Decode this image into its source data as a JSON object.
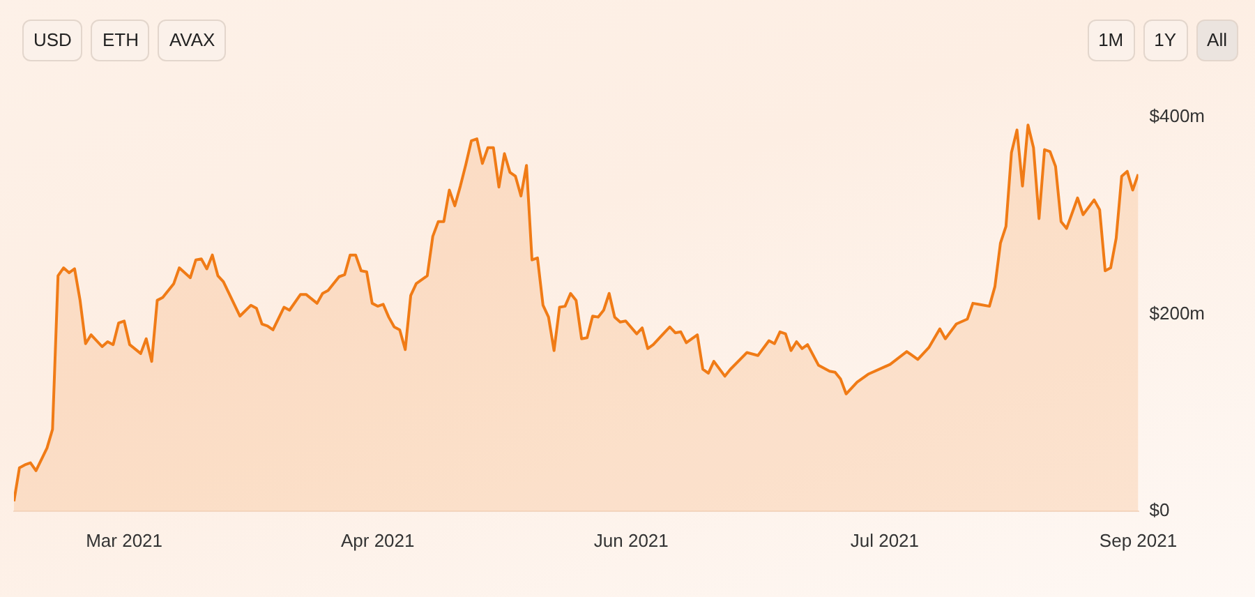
{
  "chart_data": {
    "type": "area",
    "annotations": [
      "USD",
      "ETH",
      "AVAX",
      "1M",
      "1Y",
      "All"
    ],
    "x": [
      "2021-02-13",
      "2021-02-14",
      "2021-02-15",
      "2021-02-16",
      "2021-02-17",
      "2021-02-19",
      "2021-02-20",
      "2021-02-21",
      "2021-02-22",
      "2021-02-23",
      "2021-02-24",
      "2021-02-25",
      "2021-02-26",
      "2021-02-27",
      "2021-03-01",
      "2021-03-02",
      "2021-03-03",
      "2021-03-04",
      "2021-03-05",
      "2021-03-06",
      "2021-03-08",
      "2021-03-09",
      "2021-03-10",
      "2021-03-11",
      "2021-03-12",
      "2021-03-14",
      "2021-03-15",
      "2021-03-17",
      "2021-03-18",
      "2021-03-19",
      "2021-03-20",
      "2021-03-21",
      "2021-03-22",
      "2021-03-23",
      "2021-03-26",
      "2021-03-28",
      "2021-03-29",
      "2021-03-30",
      "2021-03-31",
      "2021-04-01",
      "2021-04-03",
      "2021-04-04",
      "2021-04-06",
      "2021-04-07",
      "2021-04-09",
      "2021-04-10",
      "2021-04-11",
      "2021-04-13",
      "2021-04-14",
      "2021-04-15",
      "2021-04-16",
      "2021-04-17",
      "2021-04-18",
      "2021-04-19",
      "2021-04-20",
      "2021-04-21",
      "2021-04-22",
      "2021-04-23",
      "2021-04-24",
      "2021-04-25",
      "2021-04-26",
      "2021-04-27",
      "2021-04-29",
      "2021-04-30",
      "2021-05-01",
      "2021-05-02",
      "2021-05-03",
      "2021-05-04",
      "2021-05-05",
      "2021-05-06",
      "2021-05-07",
      "2021-05-08",
      "2021-05-09",
      "2021-05-10",
      "2021-05-11",
      "2021-05-12",
      "2021-05-13",
      "2021-05-14",
      "2021-05-15",
      "2021-05-16",
      "2021-05-17",
      "2021-05-18",
      "2021-05-19",
      "2021-05-20",
      "2021-05-21",
      "2021-05-22",
      "2021-05-23",
      "2021-05-24",
      "2021-05-25",
      "2021-05-26",
      "2021-05-27",
      "2021-05-28",
      "2021-05-29",
      "2021-05-30",
      "2021-05-31",
      "2021-06-01",
      "2021-06-02",
      "2021-06-03",
      "2021-06-04",
      "2021-06-06",
      "2021-06-07",
      "2021-06-08",
      "2021-06-09",
      "2021-06-11",
      "2021-06-12",
      "2021-06-13",
      "2021-06-14",
      "2021-06-15",
      "2021-06-17",
      "2021-06-18",
      "2021-06-19",
      "2021-06-20",
      "2021-06-22",
      "2021-06-23",
      "2021-06-26",
      "2021-06-28",
      "2021-06-30",
      "2021-07-01",
      "2021-07-02",
      "2021-07-03",
      "2021-07-04",
      "2021-07-05",
      "2021-07-06",
      "2021-07-07",
      "2021-07-09",
      "2021-07-11",
      "2021-07-12",
      "2021-07-13",
      "2021-07-14",
      "2021-07-16",
      "2021-07-18",
      "2021-07-22",
      "2021-07-25",
      "2021-07-26",
      "2021-07-27",
      "2021-07-29",
      "2021-07-31",
      "2021-08-01",
      "2021-08-03",
      "2021-08-05",
      "2021-08-06",
      "2021-08-07",
      "2021-08-09",
      "2021-08-10",
      "2021-08-11",
      "2021-08-12",
      "2021-08-13",
      "2021-08-14",
      "2021-08-15",
      "2021-08-16",
      "2021-08-17",
      "2021-08-18",
      "2021-08-19",
      "2021-08-20",
      "2021-08-21",
      "2021-08-22",
      "2021-08-23",
      "2021-08-25",
      "2021-08-26",
      "2021-08-28",
      "2021-08-29",
      "2021-08-30",
      "2021-08-31",
      "2021-09-01",
      "2021-09-02",
      "2021-09-03",
      "2021-09-04",
      "2021-09-05"
    ],
    "series": [
      {
        "color": "#f07b16",
        "values": [
          10,
          44,
          47,
          49,
          41,
          64,
          83,
          239,
          247,
          242,
          246,
          214,
          170,
          179,
          167,
          172,
          169,
          191,
          193,
          169,
          160,
          175,
          152,
          214,
          217,
          231,
          247,
          237,
          255,
          256,
          246,
          260,
          239,
          233,
          198,
          209,
          206,
          190,
          188,
          184,
          207,
          204,
          220,
          220,
          211,
          221,
          224,
          238,
          240,
          260,
          260,
          244,
          243,
          211,
          208,
          210,
          197,
          187,
          184,
          164,
          219,
          231,
          239,
          279,
          294,
          294,
          326,
          310,
          330,
          352,
          376,
          378,
          353,
          369,
          369,
          329,
          363,
          344,
          340,
          320,
          351,
          255,
          257,
          209,
          197,
          163,
          207,
          208,
          221,
          214,
          175,
          176,
          198,
          197,
          204,
          221,
          197,
          192,
          193,
          180,
          186,
          165,
          169,
          181,
          187,
          181,
          182,
          171,
          179,
          144,
          140,
          152,
          137,
          144,
          161,
          158,
          173,
          170,
          182,
          180,
          163,
          172,
          165,
          169,
          148,
          142,
          141,
          134,
          119,
          131,
          139,
          149,
          162,
          158,
          154,
          166,
          185,
          175,
          190,
          195,
          211,
          210,
          208,
          228,
          272,
          289,
          364,
          387,
          330,
          392,
          369,
          297,
          367,
          365,
          350,
          294,
          287,
          318,
          301,
          316,
          306,
          244,
          247,
          277,
          340,
          345,
          326,
          342
        ]
      }
    ],
    "xticks": [
      {
        "value": "2021-03-05",
        "label": "Mar 2021"
      },
      {
        "value": "2021-04-20",
        "label": "Apr 2021"
      },
      {
        "value": "2021-06-05",
        "label": "Jun 2021"
      },
      {
        "value": "2021-07-21",
        "label": "Jul 2021"
      },
      {
        "value": "2021-09-05",
        "label": "Sep 2021"
      }
    ],
    "xlim": [
      "2021-02-13",
      "2021-09-05"
    ],
    "ylim": [
      0,
      400
    ],
    "yticks": [
      {
        "value": 0,
        "label": "$0"
      },
      {
        "value": 200,
        "label": "$200m"
      },
      {
        "value": 400,
        "label": "$400m"
      }
    ],
    "grid": false,
    "legend": false,
    "marker": "none",
    "line_style": "solid"
  }
}
